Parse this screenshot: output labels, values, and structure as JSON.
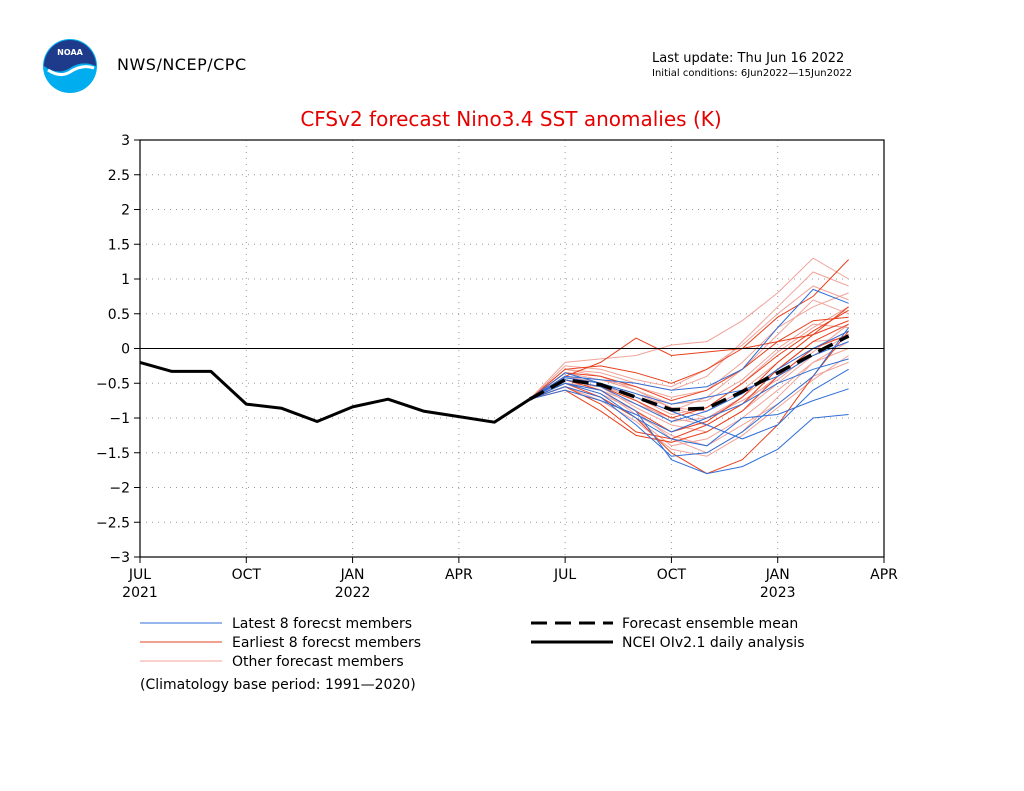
{
  "header": {
    "org": "NWS/NCEP/CPC",
    "last_update": "Last update: Thu Jun 16 2022",
    "initial_conditions": "Initial conditions: 6Jun2022—15Jun2022",
    "logo_text": "NOAA"
  },
  "footnote": "(Climatology base period: 1991—2020)",
  "colors": {
    "title": "#e60000",
    "latest": "#2f6fd8",
    "earliest": "#e8401c",
    "other": "#f0a39a",
    "observed": "#000000"
  },
  "chart_data": {
    "type": "line",
    "title": "CFSv2 forecast Nino3.4 SST anomalies (K)",
    "ylim": [
      -3,
      3
    ],
    "yticks": [
      "3",
      "2.5",
      "2",
      "1.5",
      "1",
      "0.5",
      "0",
      "−0.5",
      "−1",
      "−1.5",
      "−2",
      "−2.5",
      "−3"
    ],
    "xticks": [
      {
        "label": "JUL",
        "year": "2021",
        "m": 0
      },
      {
        "label": "OCT",
        "year": "",
        "m": 3
      },
      {
        "label": "JAN",
        "year": "2022",
        "m": 6
      },
      {
        "label": "APR",
        "year": "",
        "m": 9
      },
      {
        "label": "JUL",
        "year": "",
        "m": 12
      },
      {
        "label": "OCT",
        "year": "",
        "m": 15
      },
      {
        "label": "JAN",
        "year": "2023",
        "m": 18
      },
      {
        "label": "APR",
        "year": "",
        "m": 21
      }
    ],
    "grid": true,
    "observed": {
      "name": "NCEI OIv2.1 daily analysis",
      "x": [
        0,
        0.9,
        2.0,
        3.0,
        4.0,
        5.0,
        6.0,
        7.0,
        8.0,
        9.0,
        10.0,
        11.0
      ],
      "values": [
        -0.2,
        -0.33,
        -0.33,
        -0.8,
        -0.86,
        -1.05,
        -0.84,
        -0.73,
        -0.9,
        -0.98,
        -1.06,
        -0.73
      ]
    },
    "ensemble_mean": {
      "name": "Forecast ensemble mean",
      "x": [
        11.0,
        12.0,
        13.0,
        14.0,
        15.0,
        16.0,
        17.0,
        18.0,
        19.0,
        20.0
      ],
      "values": [
        -0.73,
        -0.45,
        -0.52,
        -0.7,
        -0.88,
        -0.86,
        -0.62,
        -0.35,
        -0.08,
        0.18
      ]
    },
    "legend": [
      {
        "label": "Latest 8 forecst members",
        "style": "latest"
      },
      {
        "label": "Earliest 8 forecst members",
        "style": "earliest"
      },
      {
        "label": "Other forecast members",
        "style": "other"
      },
      {
        "label": "Forecast ensemble mean",
        "style": "mean"
      },
      {
        "label": "NCEI OIv2.1 daily analysis",
        "style": "observed"
      }
    ],
    "members_latest": [
      [
        -0.73,
        -0.5,
        -0.6,
        -0.9,
        -1.6,
        -1.8,
        -1.7,
        -1.45,
        -1.0,
        -0.95
      ],
      [
        -0.73,
        -0.55,
        -0.7,
        -1.1,
        -1.55,
        -1.5,
        -1.2,
        -0.8,
        -0.4,
        0.3
      ],
      [
        -0.73,
        -0.4,
        -0.45,
        -0.5,
        -0.6,
        -0.55,
        -0.3,
        0.3,
        0.85,
        0.65
      ],
      [
        -0.73,
        -0.6,
        -0.75,
        -0.95,
        -1.2,
        -1.0,
        -0.8,
        -0.5,
        -0.3,
        -0.15
      ],
      [
        -0.73,
        -0.35,
        -0.5,
        -0.7,
        -0.9,
        -1.1,
        -1.3,
        -1.1,
        -0.6,
        -0.3
      ],
      [
        -0.73,
        -0.45,
        -0.55,
        -0.8,
        -1.05,
        -0.9,
        -0.65,
        -0.3,
        0.0,
        0.25
      ],
      [
        -0.73,
        -0.5,
        -0.65,
        -1.0,
        -1.3,
        -1.4,
        -1.0,
        -0.95,
        -0.75,
        -0.58
      ],
      [
        -0.73,
        -0.42,
        -0.5,
        -0.65,
        -0.8,
        -0.7,
        -0.6,
        -0.4,
        -0.1,
        0.1
      ]
    ],
    "members_earliest": [
      [
        -0.73,
        -0.3,
        -0.25,
        -0.35,
        -0.5,
        -0.3,
        0.0,
        0.45,
        0.75,
        1.28
      ],
      [
        -0.73,
        -0.45,
        -0.6,
        -0.9,
        -1.2,
        -1.05,
        -0.7,
        -0.2,
        0.2,
        0.6
      ],
      [
        -0.73,
        -0.5,
        -0.7,
        -1.0,
        -1.5,
        -1.8,
        -1.6,
        -1.1,
        -0.4,
        0.25
      ],
      [
        -0.73,
        -0.35,
        -0.4,
        -0.55,
        -0.75,
        -0.6,
        -0.3,
        0.1,
        0.4,
        0.45
      ],
      [
        -0.73,
        -0.55,
        -0.8,
        -1.2,
        -1.3,
        -1.1,
        -0.8,
        -0.3,
        0.1,
        0.35
      ],
      [
        -0.73,
        -0.4,
        -0.2,
        0.15,
        -0.1,
        -0.05,
        0.0,
        0.1,
        0.2,
        0.4
      ],
      [
        -0.73,
        -0.6,
        -0.9,
        -1.25,
        -1.35,
        -1.2,
        -0.9,
        -0.4,
        0.0,
        0.2
      ],
      [
        -0.73,
        -0.45,
        -0.55,
        -0.75,
        -1.0,
        -0.85,
        -0.5,
        -0.1,
        0.25,
        0.55
      ]
    ],
    "members_other": [
      [
        -0.73,
        -0.2,
        -0.15,
        -0.1,
        0.05,
        0.1,
        0.4,
        0.8,
        1.3,
        1.0
      ],
      [
        -0.73,
        -0.3,
        -0.35,
        -0.5,
        -0.6,
        -0.4,
        0.1,
        0.6,
        1.1,
        0.9
      ],
      [
        -0.73,
        -0.4,
        -0.5,
        -0.7,
        -0.9,
        -0.7,
        -0.3,
        0.2,
        0.7,
        0.5
      ],
      [
        -0.73,
        -0.5,
        -0.65,
        -0.9,
        -1.3,
        -1.5,
        -1.2,
        -0.7,
        -0.2,
        0.1
      ],
      [
        -0.73,
        -0.35,
        -0.45,
        -0.6,
        -0.8,
        -0.75,
        -0.45,
        0.0,
        0.35,
        0.3
      ],
      [
        -0.73,
        -0.45,
        -0.55,
        -0.85,
        -1.1,
        -1.2,
        -0.9,
        -0.5,
        -0.1,
        0.2
      ],
      [
        -0.73,
        -0.25,
        -0.3,
        -0.45,
        -0.55,
        -0.3,
        0.05,
        0.5,
        0.9,
        0.7
      ],
      [
        -0.73,
        -0.55,
        -0.7,
        -1.0,
        -1.4,
        -1.3,
        -1.0,
        -0.6,
        -0.2,
        0.0
      ],
      [
        -0.73,
        -0.4,
        -0.45,
        -0.55,
        -0.7,
        -0.6,
        -0.2,
        0.3,
        0.6,
        0.8
      ],
      [
        -0.73,
        -0.5,
        -0.6,
        -0.8,
        -1.0,
        -1.1,
        -0.8,
        -0.4,
        0.0,
        0.25
      ],
      [
        -0.73,
        -0.3,
        -0.4,
        -0.6,
        -0.85,
        -0.9,
        -0.6,
        -0.2,
        0.2,
        0.4
      ],
      [
        -0.73,
        -0.45,
        -0.6,
        -0.95,
        -1.25,
        -1.4,
        -1.1,
        -0.8,
        -0.4,
        -0.2
      ],
      [
        -0.73,
        -0.35,
        -0.5,
        -0.75,
        -1.05,
        -1.0,
        -0.7,
        -0.3,
        0.1,
        0.15
      ],
      [
        -0.73,
        -0.5,
        -0.55,
        -0.7,
        -0.95,
        -0.85,
        -0.5,
        -0.05,
        0.3,
        0.6
      ],
      [
        -0.73,
        -0.4,
        -0.5,
        -0.65,
        -0.85,
        -1.0,
        -0.75,
        -0.45,
        -0.05,
        0.35
      ],
      [
        -0.73,
        -0.55,
        -0.75,
        -1.05,
        -1.45,
        -1.55,
        -1.25,
        -0.85,
        -0.45,
        -0.1
      ]
    ]
  }
}
